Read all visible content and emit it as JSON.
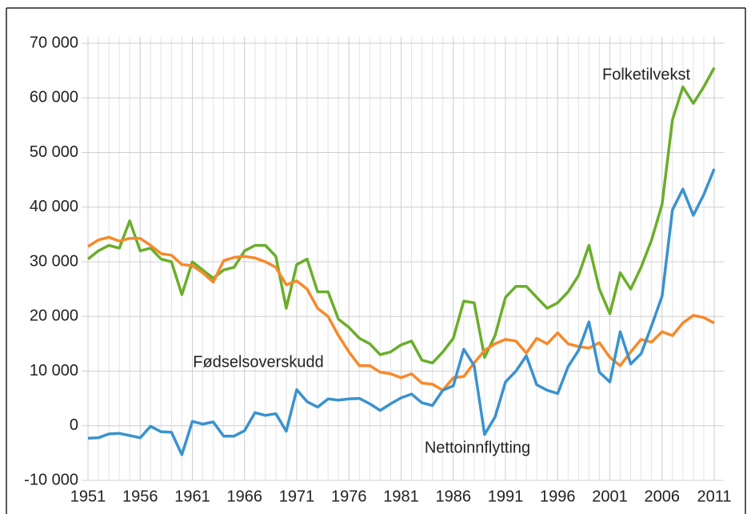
{
  "chart_data": {
    "type": "line",
    "x": [
      1951,
      1952,
      1953,
      1954,
      1955,
      1956,
      1957,
      1958,
      1959,
      1960,
      1961,
      1962,
      1963,
      1964,
      1965,
      1966,
      1967,
      1968,
      1969,
      1970,
      1971,
      1972,
      1973,
      1974,
      1975,
      1976,
      1977,
      1978,
      1979,
      1980,
      1981,
      1982,
      1983,
      1984,
      1985,
      1986,
      1987,
      1988,
      1989,
      1990,
      1991,
      1992,
      1993,
      1994,
      1995,
      1996,
      1997,
      1998,
      1999,
      2000,
      2001,
      2002,
      2003,
      2004,
      2005,
      2006,
      2007,
      2008,
      2009,
      2010,
      2011
    ],
    "series": [
      {
        "name": "Folketilvekst",
        "color": "#6aae2a",
        "values": [
          30500,
          32000,
          33000,
          32500,
          37500,
          32000,
          32500,
          30500,
          30000,
          24000,
          30000,
          28500,
          27000,
          28500,
          29000,
          32000,
          33000,
          33000,
          31000,
          21500,
          29500,
          30500,
          24500,
          24500,
          19500,
          18000,
          16000,
          15000,
          13000,
          13500,
          14800,
          15500,
          12000,
          11500,
          13500,
          16000,
          22800,
          22500,
          12500,
          16500,
          23500,
          25500,
          25500,
          23500,
          21500,
          22500,
          24500,
          27500,
          33000,
          25000,
          20500,
          28000,
          25000,
          29000,
          34000,
          40500,
          56000,
          62000,
          59000,
          62000,
          65500
        ]
      },
      {
        "name": "Fødselsoverskudd",
        "color": "#f7892a",
        "values": [
          32800,
          34000,
          34500,
          33800,
          34300,
          34300,
          33000,
          31500,
          31200,
          29500,
          29300,
          28000,
          26300,
          30200,
          30800,
          31000,
          30700,
          30000,
          29000,
          25800,
          26500,
          25000,
          21500,
          20000,
          16500,
          13500,
          11000,
          11000,
          9800,
          9500,
          8800,
          9500,
          7800,
          7600,
          6500,
          8800,
          9000,
          11500,
          13800,
          15000,
          15800,
          15500,
          13300,
          16000,
          15000,
          17000,
          15000,
          14500,
          14200,
          15200,
          12500,
          11000,
          13500,
          15800,
          15300,
          17200,
          16500,
          18800,
          20200,
          19800,
          18800
        ]
      },
      {
        "name": "Nettoinnflytting",
        "color": "#3a92cf",
        "values": [
          -2300,
          -2200,
          -1500,
          -1400,
          -1800,
          -2200,
          -100,
          -1100,
          -1200,
          -5300,
          800,
          300,
          700,
          -1900,
          -1900,
          -900,
          2400,
          1900,
          2200,
          -1000,
          6600,
          4400,
          3400,
          4900,
          4700,
          4900,
          5000,
          4000,
          2800,
          4000,
          5100,
          5800,
          4200,
          3700,
          6500,
          7300,
          14000,
          11000,
          -1600,
          1600,
          8000,
          10000,
          12800,
          7500,
          6500,
          5900,
          10800,
          13800,
          19000,
          9800,
          8000,
          17200,
          11300,
          13200,
          18300,
          23700,
          39500,
          43300,
          38500,
          42300,
          47000
        ]
      }
    ],
    "xlim": [
      1951,
      2011
    ],
    "xticks": [
      1951,
      1956,
      1961,
      1966,
      1971,
      1976,
      1981,
      1986,
      1991,
      1996,
      2001,
      2006,
      2011
    ],
    "ylim": [
      -10000,
      70000
    ],
    "yticks": [
      {
        "value": -10000,
        "label": "-10 000"
      },
      0,
      {
        "value": 10000,
        "label": "10 000"
      },
      {
        "value": 20000,
        "label": "20 000"
      },
      {
        "value": 30000,
        "label": "30 000"
      },
      {
        "value": 40000,
        "label": "40 000"
      },
      {
        "value": 50000,
        "label": "50 000"
      },
      {
        "value": 60000,
        "label": "60 000"
      },
      {
        "value": 70000,
        "label": "70 000"
      }
    ],
    "grid": true
  }
}
